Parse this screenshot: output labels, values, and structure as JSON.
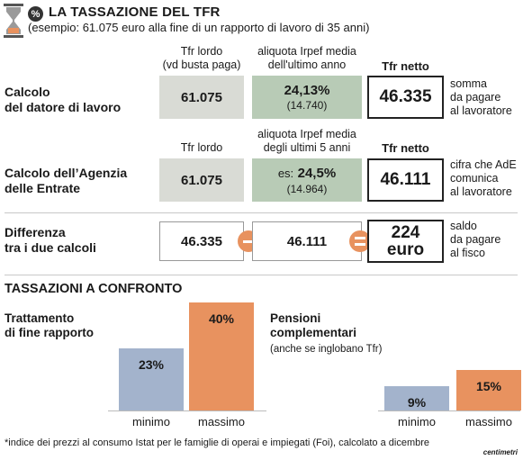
{
  "header": {
    "title": "LA TASSAZIONE DEL TFR",
    "subtitle": "(esempio: 61.075 euro alla fine di un rapporto di lavoro di 35 anni)",
    "icon": "percent-icon",
    "logo": "hourglass-icon"
  },
  "row1": {
    "label": [
      "Calcolo",
      "del datore di lavoro"
    ],
    "col1_head": [
      "Tfr lordo",
      "(vd busta paga)"
    ],
    "col2_head": [
      "aliquota Irpef media",
      "dell'ultimo anno"
    ],
    "col3_head": "Tfr netto",
    "gross": "61.075",
    "rate": "24,13%",
    "rate_amount": "(14.740)",
    "net": "46.335",
    "note": [
      "somma",
      "da pagare",
      "al lavoratore"
    ]
  },
  "row2": {
    "label": [
      "Calcolo dell’Agenzia",
      "delle Entrate"
    ],
    "col1_head": "Tfr lordo",
    "col2_head": [
      "aliquota Irpef media",
      "degli ultimi 5 anni"
    ],
    "col3_head": "Tfr netto",
    "gross": "61.075",
    "rate_prefix": "es:",
    "rate": "24,5%",
    "rate_amount": "(14.964)",
    "net": "46.111",
    "note": [
      "cifra che AdE",
      "comunica",
      "al lavoratore"
    ]
  },
  "row3": {
    "label": [
      "Differenza",
      "tra i due calcoli"
    ],
    "a": "46.335",
    "b": "46.111",
    "result_value": "224",
    "result_unit": "euro",
    "note": [
      "saldo",
      "da pagare",
      "al fisco"
    ]
  },
  "section_title": "TASSAZIONI A CONFRONTO",
  "colors": {
    "minimo": "#a3b3cc",
    "massimo": "#e8925f",
    "gray_box": "#d9dbd5",
    "green_box": "#b8cbb6",
    "operator": "#e8925f"
  },
  "chart_data": [
    {
      "type": "bar",
      "title": [
        "Trattamento",
        "di fine rapporto"
      ],
      "subtitle": "",
      "categories": [
        "minimo",
        "massimo"
      ],
      "values": [
        23,
        40
      ],
      "labels": [
        "23%",
        "40%"
      ],
      "ylim": [
        0,
        40
      ]
    },
    {
      "type": "bar",
      "title": [
        "Pensioni",
        "complementari"
      ],
      "subtitle": "(anche se inglobano Tfr)",
      "categories": [
        "minimo",
        "massimo"
      ],
      "values": [
        9,
        15
      ],
      "labels": [
        "9%",
        "15%"
      ],
      "ylim": [
        0,
        40
      ]
    }
  ],
  "footnote": "*indice dei prezzi al consumo Istat per le famiglie di operai e impiegati (Foi), calcolato a dicembre",
  "credit": "centimetri"
}
